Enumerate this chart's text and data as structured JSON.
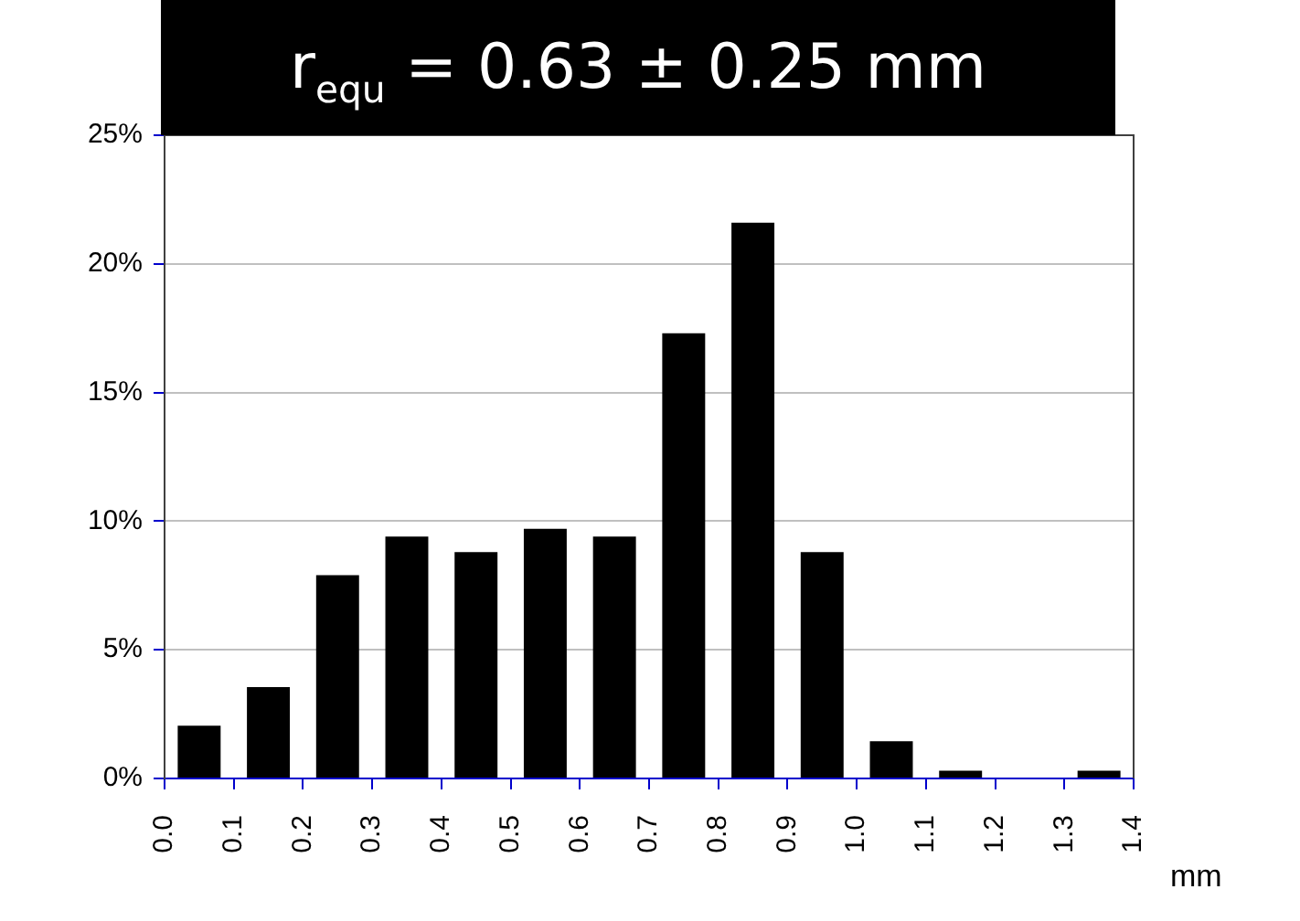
{
  "chart_data": {
    "type": "bar",
    "title": "r$_{equ}$ = 0.63 ± 0.25 mm",
    "xlabel": "mm",
    "x": [
      0.05,
      0.15,
      0.25,
      0.35,
      0.45,
      0.55,
      0.65,
      0.75,
      0.85,
      0.95,
      1.05,
      1.15,
      1.25,
      1.35
    ],
    "values": [
      2.05,
      3.55,
      7.9,
      9.4,
      8.8,
      9.7,
      9.4,
      17.3,
      21.6,
      8.8,
      1.45,
      0.3,
      0,
      0.3
    ],
    "color": "#000000",
    "xlim": [
      0.0,
      1.4
    ],
    "xticks": [
      {
        "value": 0,
        "label": "0.0"
      },
      {
        "value": 0.1,
        "label": "0.1"
      },
      {
        "value": 0.2,
        "label": "0.2"
      },
      {
        "value": 0.3,
        "label": "0.3"
      },
      {
        "value": 0.4,
        "label": "0.4"
      },
      {
        "value": 0.5,
        "label": "0.5"
      },
      {
        "value": 0.6,
        "label": "0.6"
      },
      {
        "value": 0.7,
        "label": "0.7"
      },
      {
        "value": 0.8,
        "label": "0.8"
      },
      {
        "value": 0.9,
        "label": "0.9"
      },
      {
        "value": 1.0,
        "label": "1.0"
      },
      {
        "value": 1.1,
        "label": "1.1"
      },
      {
        "value": 1.2,
        "label": "1.2"
      },
      {
        "value": 1.3,
        "label": "1.3"
      },
      {
        "value": 1.4,
        "label": "1.4"
      }
    ],
    "ylim": [
      0,
      25
    ],
    "yticks": [
      {
        "value": 0,
        "label": "0%"
      },
      {
        "value": 5,
        "label": "5%"
      },
      {
        "value": 10,
        "label": "10%"
      },
      {
        "value": 15,
        "label": "15%"
      },
      {
        "value": 20,
        "label": "20%"
      },
      {
        "value": 25,
        "label": "25%"
      }
    ],
    "grid": "y",
    "legend": false
  }
}
